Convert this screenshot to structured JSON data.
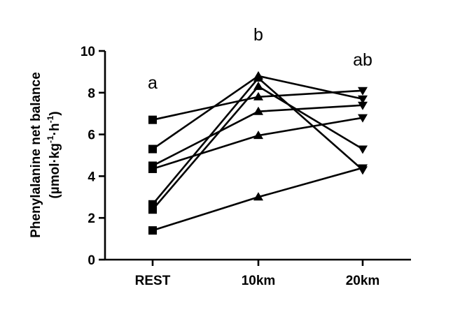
{
  "chart_data": {
    "type": "line",
    "categories": [
      "REST",
      "10km",
      "20km"
    ],
    "ylabel_line1": "Phenylalanine net balance",
    "ylabel_line2_parts": [
      "(µmol·kg",
      "-1",
      "·h",
      "-1",
      ")"
    ],
    "ylim": [
      0,
      10
    ],
    "yticks": [
      0,
      2,
      4,
      6,
      8,
      10
    ],
    "grid": false,
    "significance_labels": [
      {
        "category": "REST",
        "text": "a",
        "y": 8.2
      },
      {
        "category": "10km",
        "text": "b",
        "y": 10.5
      },
      {
        "category": "20km",
        "text": "ab",
        "y": 9.3
      }
    ],
    "series": [
      {
        "values": [
          6.7,
          7.8,
          8.1
        ],
        "markers": [
          "square",
          "triangle-up",
          "triangle-down"
        ]
      },
      {
        "values": [
          5.3,
          8.8,
          7.7
        ],
        "markers": [
          "square",
          "triangle-up",
          "triangle-down"
        ]
      },
      {
        "values": [
          4.5,
          7.1,
          7.4
        ],
        "markers": [
          "square",
          "triangle-up",
          "triangle-down"
        ]
      },
      {
        "values": [
          4.35,
          5.95,
          6.8
        ],
        "markers": [
          "square",
          "triangle-up",
          "triangle-down"
        ]
      },
      {
        "values": [
          2.65,
          8.7,
          4.3
        ],
        "markers": [
          "square",
          "triangle-up",
          "triangle-down"
        ]
      },
      {
        "values": [
          2.4,
          8.3,
          5.3
        ],
        "markers": [
          "square",
          "triangle-up",
          "triangle-down"
        ]
      },
      {
        "values": [
          1.4,
          3.0,
          4.4
        ],
        "markers": [
          "square",
          "triangle-up",
          "triangle-down"
        ]
      }
    ]
  }
}
